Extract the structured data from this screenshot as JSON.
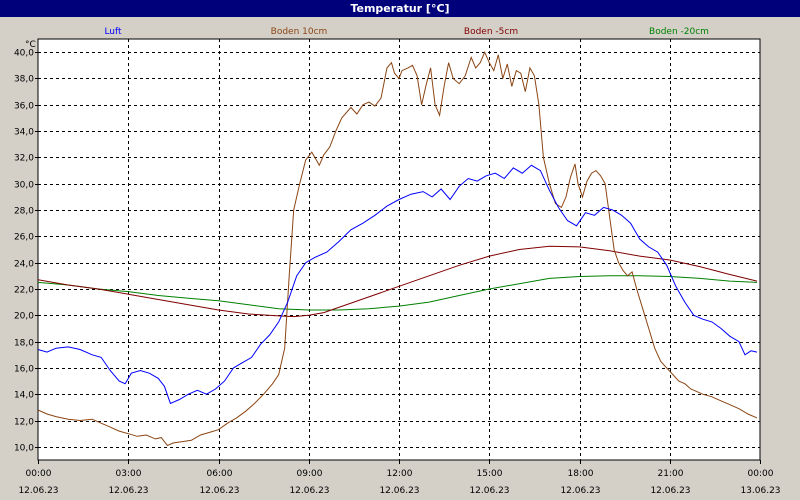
{
  "window": {
    "title": "Temperatur [°C]"
  },
  "chart_data": {
    "type": "line",
    "ylabel": "°C",
    "ylim": [
      9.0,
      41.0
    ],
    "yticks": [
      "10,0",
      "12,0",
      "14,0",
      "16,0",
      "18,0",
      "20,0",
      "22,0",
      "24,0",
      "26,0",
      "28,0",
      "30,0",
      "32,0",
      "34,0",
      "36,0",
      "38,0",
      "40,0"
    ],
    "xticks": [
      {
        "time": "00:00",
        "date": "12.06.23"
      },
      {
        "time": "03:00",
        "date": "12.06.23"
      },
      {
        "time": "06:00",
        "date": "12.06.23"
      },
      {
        "time": "09:00",
        "date": "12.06.23"
      },
      {
        "time": "12:00",
        "date": "12.06.23"
      },
      {
        "time": "15:00",
        "date": "12.06.23"
      },
      {
        "time": "18:00",
        "date": "12.06.23"
      },
      {
        "time": "21:00",
        "date": "12.06.23"
      },
      {
        "time": "00:00",
        "date": "13.06.23"
      }
    ],
    "grid": true,
    "legend_position": "top",
    "series": [
      {
        "name": "Luft",
        "color": "#0000ff",
        "points": [
          [
            0.0,
            17.4
          ],
          [
            0.3,
            17.2
          ],
          [
            0.6,
            17.5
          ],
          [
            1.0,
            17.6
          ],
          [
            1.4,
            17.4
          ],
          [
            1.8,
            17.0
          ],
          [
            2.1,
            16.8
          ],
          [
            2.4,
            15.8
          ],
          [
            2.7,
            15.0
          ],
          [
            2.9,
            14.8
          ],
          [
            3.1,
            15.6
          ],
          [
            3.4,
            15.8
          ],
          [
            3.7,
            15.6
          ],
          [
            4.0,
            15.2
          ],
          [
            4.2,
            14.6
          ],
          [
            4.4,
            13.3
          ],
          [
            4.7,
            13.6
          ],
          [
            5.0,
            14.0
          ],
          [
            5.3,
            14.3
          ],
          [
            5.6,
            14.0
          ],
          [
            5.9,
            14.4
          ],
          [
            6.2,
            15.0
          ],
          [
            6.5,
            16.0
          ],
          [
            6.8,
            16.4
          ],
          [
            7.1,
            16.8
          ],
          [
            7.4,
            17.8
          ],
          [
            7.7,
            18.5
          ],
          [
            8.0,
            19.5
          ],
          [
            8.3,
            21.0
          ],
          [
            8.6,
            23.0
          ],
          [
            8.9,
            24.0
          ],
          [
            9.2,
            24.4
          ],
          [
            9.6,
            24.8
          ],
          [
            10.0,
            25.6
          ],
          [
            10.4,
            26.5
          ],
          [
            10.8,
            27.0
          ],
          [
            11.2,
            27.6
          ],
          [
            11.6,
            28.3
          ],
          [
            12.0,
            28.8
          ],
          [
            12.4,
            29.2
          ],
          [
            12.8,
            29.4
          ],
          [
            13.1,
            29.0
          ],
          [
            13.4,
            29.6
          ],
          [
            13.7,
            28.8
          ],
          [
            14.0,
            29.8
          ],
          [
            14.3,
            30.4
          ],
          [
            14.6,
            30.2
          ],
          [
            14.9,
            30.6
          ],
          [
            15.2,
            30.8
          ],
          [
            15.5,
            30.4
          ],
          [
            15.8,
            31.2
          ],
          [
            16.1,
            30.8
          ],
          [
            16.4,
            31.4
          ],
          [
            16.7,
            31.0
          ],
          [
            17.0,
            29.5
          ],
          [
            17.3,
            28.2
          ],
          [
            17.6,
            27.2
          ],
          [
            17.9,
            26.8
          ],
          [
            18.2,
            27.8
          ],
          [
            18.5,
            27.6
          ],
          [
            18.8,
            28.2
          ],
          [
            19.1,
            28.0
          ],
          [
            19.4,
            27.6
          ],
          [
            19.7,
            27.0
          ],
          [
            20.0,
            25.8
          ],
          [
            20.3,
            25.2
          ],
          [
            20.6,
            24.8
          ],
          [
            20.9,
            23.8
          ],
          [
            21.2,
            22.2
          ],
          [
            21.5,
            21.0
          ],
          [
            21.8,
            20.0
          ],
          [
            22.1,
            19.7
          ],
          [
            22.4,
            19.5
          ],
          [
            22.7,
            19.0
          ],
          [
            23.0,
            18.4
          ],
          [
            23.3,
            18.0
          ],
          [
            23.5,
            17.0
          ],
          [
            23.7,
            17.3
          ],
          [
            23.9,
            17.2
          ]
        ]
      },
      {
        "name": "Boden 10cm",
        "color": "#8b4513",
        "points": [
          [
            0.0,
            12.8
          ],
          [
            0.3,
            12.5
          ],
          [
            0.6,
            12.3
          ],
          [
            1.0,
            12.1
          ],
          [
            1.4,
            12.0
          ],
          [
            1.8,
            12.1
          ],
          [
            2.1,
            11.8
          ],
          [
            2.4,
            11.5
          ],
          [
            2.7,
            11.2
          ],
          [
            3.0,
            11.0
          ],
          [
            3.3,
            10.8
          ],
          [
            3.6,
            10.9
          ],
          [
            3.9,
            10.6
          ],
          [
            4.1,
            10.7
          ],
          [
            4.3,
            10.1
          ],
          [
            4.5,
            10.3
          ],
          [
            4.8,
            10.4
          ],
          [
            5.1,
            10.5
          ],
          [
            5.4,
            10.9
          ],
          [
            5.7,
            11.1
          ],
          [
            6.0,
            11.3
          ],
          [
            6.3,
            11.8
          ],
          [
            6.6,
            12.2
          ],
          [
            6.9,
            12.7
          ],
          [
            7.2,
            13.3
          ],
          [
            7.5,
            14.0
          ],
          [
            7.8,
            14.8
          ],
          [
            8.0,
            15.5
          ],
          [
            8.2,
            17.5
          ],
          [
            8.35,
            23.0
          ],
          [
            8.5,
            28.0
          ],
          [
            8.7,
            30.0
          ],
          [
            8.9,
            31.8
          ],
          [
            9.1,
            32.4
          ],
          [
            9.2,
            32.0
          ],
          [
            9.35,
            31.4
          ],
          [
            9.5,
            32.2
          ],
          [
            9.7,
            32.8
          ],
          [
            9.9,
            34.0
          ],
          [
            10.1,
            35.0
          ],
          [
            10.4,
            35.8
          ],
          [
            10.6,
            35.3
          ],
          [
            10.8,
            36.0
          ],
          [
            11.0,
            36.2
          ],
          [
            11.2,
            35.9
          ],
          [
            11.4,
            36.5
          ],
          [
            11.6,
            38.8
          ],
          [
            11.75,
            39.2
          ],
          [
            11.85,
            38.4
          ],
          [
            12.0,
            38.0
          ],
          [
            12.1,
            38.6
          ],
          [
            12.3,
            38.8
          ],
          [
            12.45,
            39.0
          ],
          [
            12.6,
            38.2
          ],
          [
            12.75,
            36.0
          ],
          [
            12.9,
            37.5
          ],
          [
            13.05,
            38.8
          ],
          [
            13.2,
            36.0
          ],
          [
            13.35,
            35.2
          ],
          [
            13.5,
            37.4
          ],
          [
            13.65,
            39.2
          ],
          [
            13.8,
            38.0
          ],
          [
            14.0,
            37.6
          ],
          [
            14.2,
            38.2
          ],
          [
            14.4,
            39.6
          ],
          [
            14.55,
            38.8
          ],
          [
            14.7,
            39.2
          ],
          [
            14.85,
            40.0
          ],
          [
            15.0,
            39.2
          ],
          [
            15.15,
            38.6
          ],
          [
            15.3,
            39.8
          ],
          [
            15.45,
            38.0
          ],
          [
            15.6,
            39.1
          ],
          [
            15.75,
            37.4
          ],
          [
            15.9,
            38.6
          ],
          [
            16.05,
            38.4
          ],
          [
            16.2,
            37.0
          ],
          [
            16.35,
            38.8
          ],
          [
            16.5,
            38.2
          ],
          [
            16.65,
            36.0
          ],
          [
            16.8,
            32.0
          ],
          [
            17.0,
            30.0
          ],
          [
            17.2,
            28.5
          ],
          [
            17.4,
            28.2
          ],
          [
            17.55,
            29.0
          ],
          [
            17.7,
            30.5
          ],
          [
            17.85,
            31.5
          ],
          [
            17.95,
            30.0
          ],
          [
            18.1,
            29.0
          ],
          [
            18.25,
            30.2
          ],
          [
            18.4,
            30.8
          ],
          [
            18.55,
            31.0
          ],
          [
            18.7,
            30.6
          ],
          [
            18.85,
            30.0
          ],
          [
            19.0,
            27.5
          ],
          [
            19.15,
            25.0
          ],
          [
            19.3,
            24.0
          ],
          [
            19.45,
            23.4
          ],
          [
            19.6,
            23.0
          ],
          [
            19.75,
            23.3
          ],
          [
            19.9,
            22.0
          ],
          [
            20.1,
            20.5
          ],
          [
            20.3,
            19.0
          ],
          [
            20.5,
            17.5
          ],
          [
            20.7,
            16.5
          ],
          [
            20.9,
            16.0
          ],
          [
            21.1,
            15.5
          ],
          [
            21.3,
            15.0
          ],
          [
            21.5,
            14.8
          ],
          [
            21.7,
            14.4
          ],
          [
            21.9,
            14.2
          ],
          [
            22.1,
            14.0
          ],
          [
            22.4,
            13.8
          ],
          [
            22.7,
            13.5
          ],
          [
            23.0,
            13.2
          ],
          [
            23.3,
            12.9
          ],
          [
            23.6,
            12.5
          ],
          [
            23.9,
            12.2
          ]
        ]
      },
      {
        "name": "Boden -5cm",
        "color": "#800000",
        "points": [
          [
            0.0,
            22.7
          ],
          [
            1.0,
            22.3
          ],
          [
            2.0,
            22.0
          ],
          [
            3.0,
            21.6
          ],
          [
            4.0,
            21.2
          ],
          [
            5.0,
            20.8
          ],
          [
            6.0,
            20.4
          ],
          [
            7.0,
            20.1
          ],
          [
            8.0,
            19.95
          ],
          [
            8.5,
            19.9
          ],
          [
            9.0,
            20.0
          ],
          [
            9.5,
            20.2
          ],
          [
            10.0,
            20.6
          ],
          [
            11.0,
            21.4
          ],
          [
            12.0,
            22.2
          ],
          [
            13.0,
            23.0
          ],
          [
            14.0,
            23.8
          ],
          [
            15.0,
            24.5
          ],
          [
            16.0,
            25.0
          ],
          [
            17.0,
            25.25
          ],
          [
            18.0,
            25.2
          ],
          [
            19.0,
            24.9
          ],
          [
            20.0,
            24.5
          ],
          [
            21.0,
            24.2
          ],
          [
            22.0,
            23.7
          ],
          [
            23.0,
            23.1
          ],
          [
            23.9,
            22.6
          ]
        ]
      },
      {
        "name": "Boden -20cm",
        "color": "#008000",
        "points": [
          [
            0.0,
            22.5
          ],
          [
            1.0,
            22.3
          ],
          [
            2.0,
            22.0
          ],
          [
            3.0,
            21.8
          ],
          [
            4.0,
            21.5
          ],
          [
            5.0,
            21.3
          ],
          [
            6.0,
            21.1
          ],
          [
            7.0,
            20.8
          ],
          [
            8.0,
            20.5
          ],
          [
            9.0,
            20.4
          ],
          [
            10.0,
            20.4
          ],
          [
            11.0,
            20.5
          ],
          [
            12.0,
            20.7
          ],
          [
            13.0,
            21.0
          ],
          [
            14.0,
            21.5
          ],
          [
            15.0,
            22.0
          ],
          [
            16.0,
            22.4
          ],
          [
            17.0,
            22.8
          ],
          [
            18.0,
            22.95
          ],
          [
            19.0,
            23.0
          ],
          [
            20.0,
            23.0
          ],
          [
            21.0,
            22.95
          ],
          [
            22.0,
            22.8
          ],
          [
            23.0,
            22.6
          ],
          [
            23.9,
            22.5
          ]
        ]
      }
    ]
  }
}
